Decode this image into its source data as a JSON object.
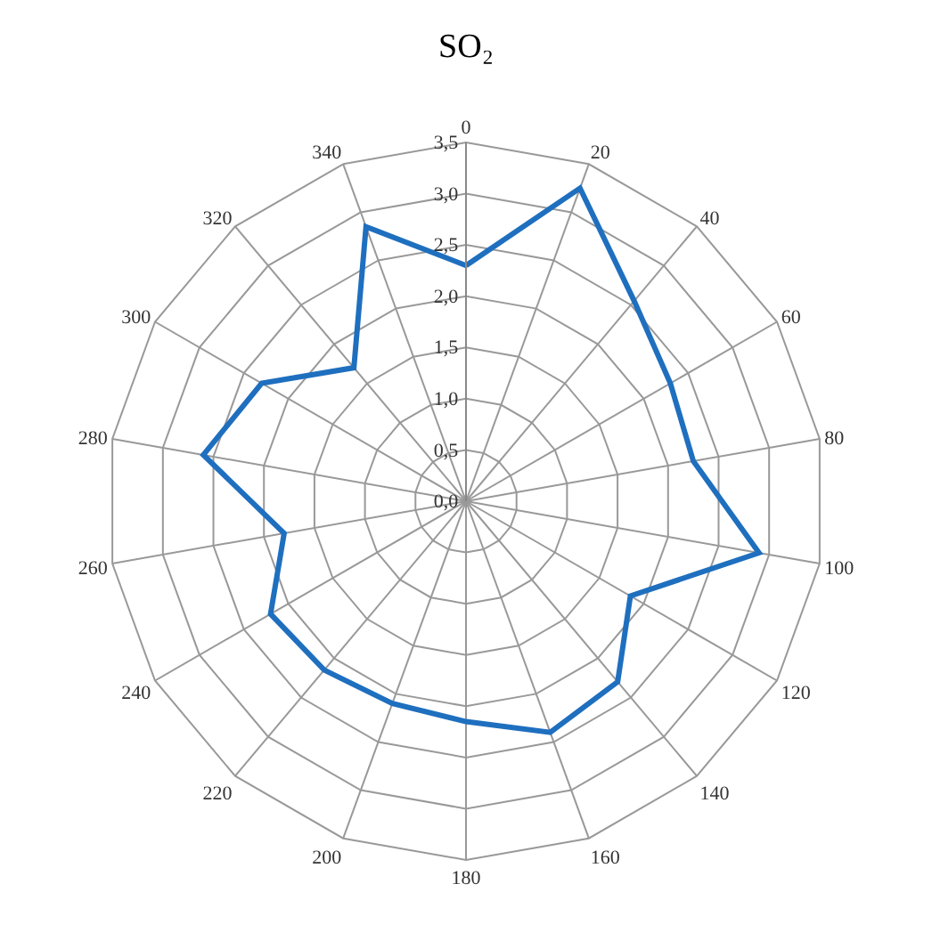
{
  "chart_data": {
    "type": "radar",
    "title": "SO₂",
    "categories": [
      "0",
      "20",
      "40",
      "60",
      "80",
      "100",
      "120",
      "140",
      "160",
      "180",
      "200",
      "220",
      "240",
      "260",
      "280",
      "300",
      "320",
      "340"
    ],
    "series": [
      {
        "color": "#1f6fbf",
        "values": [
          2.3,
          3.25,
          2.55,
          2.3,
          2.25,
          2.9,
          1.85,
          2.3,
          2.4,
          2.15,
          2.1,
          2.15,
          2.2,
          1.8,
          2.6,
          2.3,
          1.7,
          2.85
        ]
      }
    ],
    "ylim": [
      0,
      3.5
    ],
    "yticks": [
      {
        "value": 0,
        "label": "0,0"
      },
      {
        "value": 0.5,
        "label": "0,5"
      },
      {
        "value": 1,
        "label": "1,0"
      },
      {
        "value": 1.5,
        "label": "1,5"
      },
      {
        "value": 2,
        "label": "2,0"
      },
      {
        "value": 2.5,
        "label": "2,5"
      },
      {
        "value": 3,
        "label": "3,0"
      },
      {
        "value": 3.5,
        "label": "3,5"
      }
    ],
    "grid": true,
    "marker": "none",
    "line_style": "solid"
  }
}
